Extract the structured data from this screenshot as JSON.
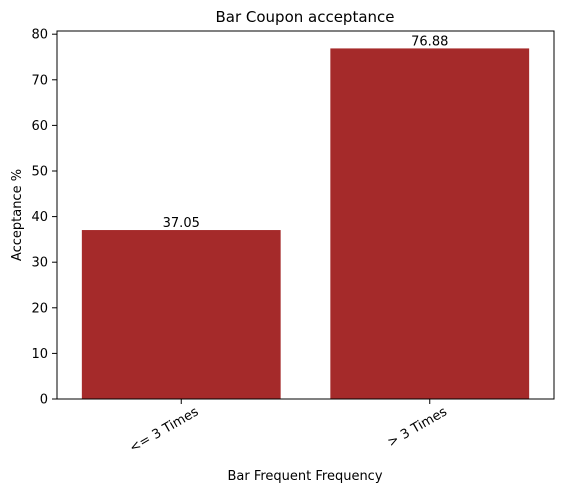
{
  "chart_data": {
    "type": "bar",
    "title": "Bar Coupon acceptance",
    "xlabel": "Bar Frequent Frequency",
    "ylabel": "Acceptance %",
    "categories": [
      "<= 3 Times",
      "> 3 Times"
    ],
    "values": [
      37.05,
      76.88
    ],
    "data_labels": [
      "37.05",
      "76.88"
    ],
    "yticks": [
      "0",
      "10",
      "20",
      "30",
      "40",
      "50",
      "60",
      "70",
      "80"
    ],
    "ylim": [
      0,
      80.7
    ],
    "bar_color": "#a52a2a",
    "grid": false,
    "legend": "none"
  }
}
